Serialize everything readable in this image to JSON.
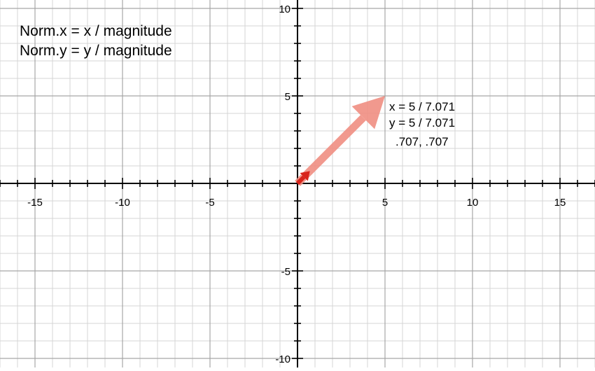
{
  "chart_data": {
    "type": "scatter",
    "xlim": [
      -17,
      17
    ],
    "ylim": [
      -10.5,
      10
    ],
    "grid": true,
    "minor_grid_step": 1,
    "major_grid_step": 5,
    "x_ticks": [
      {
        "value": -15,
        "label": "-15"
      },
      {
        "value": -10,
        "label": "-10"
      },
      {
        "value": -5,
        "label": "-5"
      },
      {
        "value": 5,
        "label": "5"
      },
      {
        "value": 10,
        "label": "10"
      },
      {
        "value": 15,
        "label": "15"
      }
    ],
    "y_ticks": [
      {
        "value": 10,
        "label": "10"
      },
      {
        "value": 5,
        "label": "5"
      },
      {
        "value": -5,
        "label": "-5"
      },
      {
        "value": -10,
        "label": "-10"
      }
    ],
    "vectors": [
      {
        "from": [
          0,
          0
        ],
        "to": [
          5,
          5
        ],
        "color": "#f08f82",
        "opacity": 0.9
      },
      {
        "from": [
          0,
          0
        ],
        "to": [
          0.707,
          0.707
        ],
        "color": "#d8241b",
        "opacity": 1
      }
    ],
    "annotations": {
      "formula_x": "Norm.x = x / magnitude",
      "formula_y": "Norm.y = y / magnitude",
      "calc_x": "x = 5 / 7.071",
      "calc_y": "y = 5 / 7.071",
      "result": ".707, .707"
    }
  }
}
